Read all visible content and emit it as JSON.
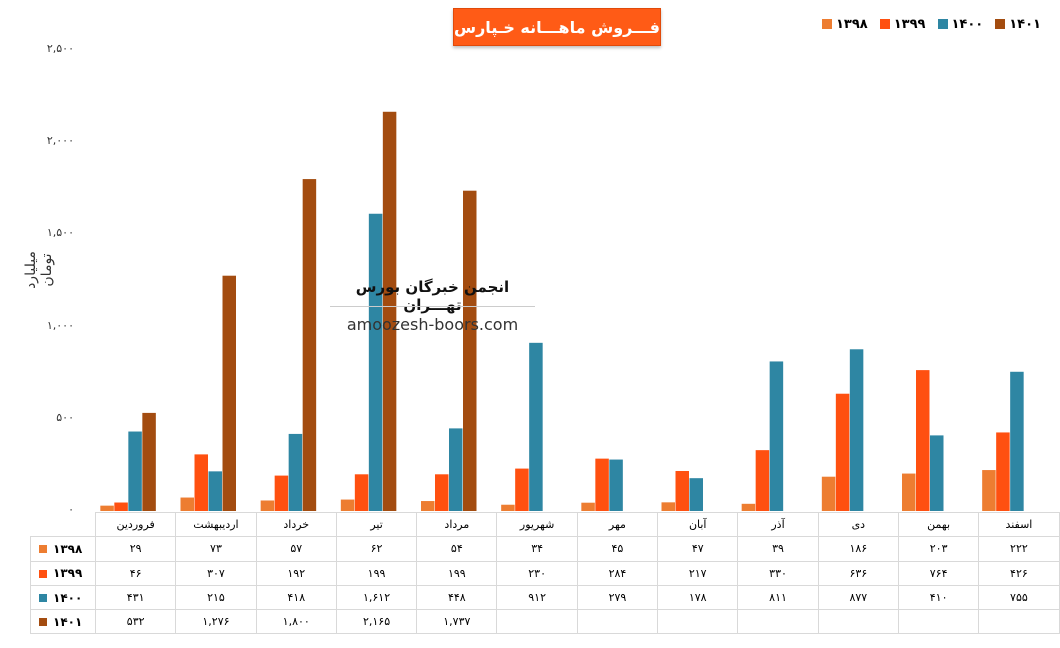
{
  "title": "فـــروش ماهـــانه خـپارس",
  "watermark": {
    "title": "انجمن خبرگان بورس تهـــران",
    "url": "amoozesh-boors.com"
  },
  "chart_data": {
    "type": "bar",
    "ylabel": "میلیارد تومان",
    "ylim": [
      0,
      2500
    ],
    "yticks": [
      "۰",
      "۵۰۰",
      "۱,۰۰۰",
      "۱,۵۰۰",
      "۲,۰۰۰",
      "۲,۵۰۰"
    ],
    "ytick_values": [
      0,
      500,
      1000,
      1500,
      2000,
      2500
    ],
    "categories": [
      "فروردین",
      "اردیبهشت",
      "خرداد",
      "تیر",
      "مرداد",
      "شهریور",
      "مهر",
      "آبان",
      "آذر",
      "دی",
      "بهمن",
      "اسفند"
    ],
    "legend_position": "top-right",
    "series": [
      {
        "name": "۱۳۹۸",
        "color": "#ed7d31",
        "values": [
          29,
          73,
          57,
          62,
          54,
          34,
          45,
          47,
          39,
          186,
          203,
          222
        ],
        "labels": [
          "۲۹",
          "۷۳",
          "۵۷",
          "۶۲",
          "۵۴",
          "۳۴",
          "۴۵",
          "۴۷",
          "۳۹",
          "۱۸۶",
          "۲۰۳",
          "۲۲۲"
        ]
      },
      {
        "name": "۱۳۹۹",
        "color": "#ff5010",
        "values": [
          46,
          307,
          192,
          199,
          199,
          230,
          284,
          217,
          330,
          636,
          764,
          426
        ],
        "labels": [
          "۴۶",
          "۳۰۷",
          "۱۹۲",
          "۱۹۹",
          "۱۹۹",
          "۲۳۰",
          "۲۸۴",
          "۲۱۷",
          "۳۳۰",
          "۶۳۶",
          "۷۶۴",
          "۴۲۶"
        ]
      },
      {
        "name": "۱۴۰۰",
        "color": "#2e86a3",
        "values": [
          431,
          215,
          418,
          1612,
          448,
          912,
          279,
          178,
          811,
          877,
          410,
          755
        ],
        "labels": [
          "۴۳۱",
          "۲۱۵",
          "۴۱۸",
          "۱,۶۱۲",
          "۴۴۸",
          "۹۱۲",
          "۲۷۹",
          "۱۷۸",
          "۸۱۱",
          "۸۷۷",
          "۴۱۰",
          "۷۵۵"
        ]
      },
      {
        "name": "۱۴۰۱",
        "color": "#a34c10",
        "values": [
          532,
          1276,
          1800,
          2165,
          1737,
          null,
          null,
          null,
          null,
          null,
          null,
          null
        ],
        "labels": [
          "۵۳۲",
          "۱,۲۷۶",
          "۱,۸۰۰",
          "۲,۱۶۵",
          "۱,۷۳۷",
          "",
          "",
          "",
          "",
          "",
          "",
          ""
        ]
      }
    ]
  }
}
